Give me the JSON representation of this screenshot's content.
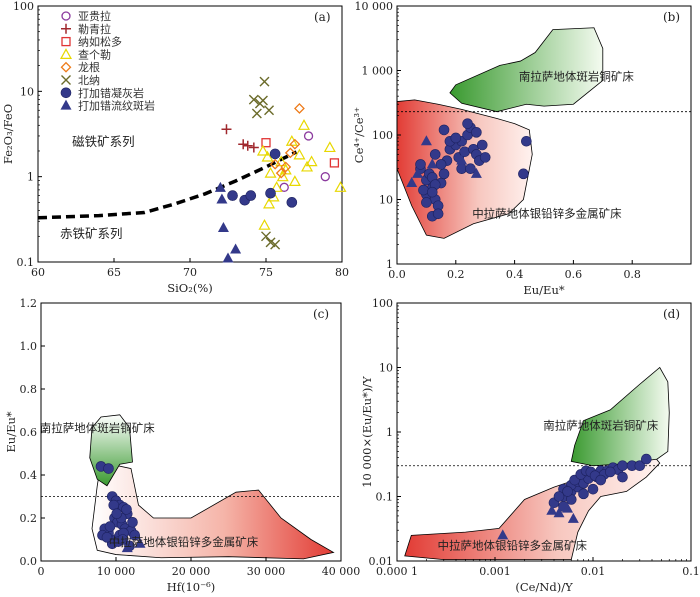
{
  "chart_data": [
    {
      "panel": "(a)",
      "type": "scatter",
      "xlabel": "SiO₂(%)",
      "ylabel": "Fe₂O₃/FeO",
      "xlim": [
        60,
        80
      ],
      "ylim": [
        0.1,
        100
      ],
      "yscale": "log",
      "xticks": [
        "60",
        "65",
        "70",
        "75",
        "80"
      ],
      "yticks": [
        {
          "v": 100,
          "label": "100"
        },
        {
          "v": 10,
          "label": "10"
        },
        {
          "v": 1,
          "label": "1"
        },
        {
          "v": 0.1,
          "label": "0.1"
        }
      ],
      "legend": {
        "position": "top-left",
        "entries": [
          {
            "label": "亚贵拉",
            "marker": "circle-open",
            "color": "#8b3a9e"
          },
          {
            "label": "勒青拉",
            "marker": "plus",
            "color": "#a0282d"
          },
          {
            "label": "纳如松多",
            "marker": "square-open",
            "color": "#e03535"
          },
          {
            "label": "查个勒",
            "marker": "triangle-open",
            "color": "#e8d800"
          },
          {
            "label": "龙根",
            "marker": "diamond-open",
            "color": "#ee7a18"
          },
          {
            "label": "北纳",
            "marker": "cross",
            "color": "#6b6b2a"
          },
          {
            "label": "打加错凝灰岩",
            "marker": "circle-filled",
            "color": "#33398a"
          },
          {
            "label": "打加错流纹斑岩",
            "marker": "triangle-filled",
            "color": "#33398a"
          }
        ]
      },
      "annotations": [
        {
          "text": "磁铁矿系列",
          "x": 64.3,
          "y": 2.3
        },
        {
          "text": "赤铁矿系列",
          "x": 63.5,
          "y": 0.19
        }
      ],
      "boundary_line": {
        "style": "dashed",
        "x": [
          60,
          64,
          67,
          69,
          71,
          73,
          75,
          77
        ],
        "y": [
          0.33,
          0.35,
          0.38,
          0.48,
          0.63,
          0.89,
          1.3,
          1.95
        ]
      },
      "series": [
        {
          "name": "亚贵拉",
          "x": [
            76.2,
            77.8,
            78.9
          ],
          "y": [
            0.75,
            3.0,
            1.0
          ]
        },
        {
          "name": "勒青拉",
          "x": [
            72.4,
            73.5,
            73.8,
            74.2
          ],
          "y": [
            3.6,
            2.4,
            2.3,
            2.2
          ]
        },
        {
          "name": "纳如松多",
          "x": [
            75.0,
            79.5
          ],
          "y": [
            2.5,
            1.45
          ]
        },
        {
          "name": "查个勒",
          "x": [
            74.8,
            75.1,
            75.3,
            75.7,
            76.0,
            76.3,
            76.7,
            77.2,
            77.5,
            78.0,
            79.2,
            79.9,
            74.9,
            75.5,
            76.9,
            75.2,
            76.1,
            77.7
          ],
          "y": [
            2.0,
            1.7,
            1.1,
            0.75,
            1.5,
            1.2,
            2.6,
            1.8,
            4.0,
            1.5,
            2.2,
            0.75,
            0.27,
            0.58,
            0.88,
            0.48,
            1.0,
            1.3
          ]
        },
        {
          "name": "龙根",
          "x": [
            75.6,
            76.0,
            76.3,
            76.6,
            76.9,
            77.2
          ],
          "y": [
            1.4,
            1.1,
            1.3,
            1.9,
            2.4,
            6.3
          ]
        },
        {
          "name": "北纳",
          "x": [
            74.2,
            74.6,
            74.9,
            75.2,
            74.4,
            74.8,
            75.0,
            75.3,
            75.6
          ],
          "y": [
            8.0,
            7.2,
            13.0,
            6.0,
            5.5,
            7.8,
            0.2,
            0.17,
            0.16
          ]
        },
        {
          "name": "打加错凝灰岩",
          "x": [
            72.8,
            73.6,
            74.0,
            75.3,
            75.6,
            76.7
          ],
          "y": [
            0.6,
            0.53,
            0.6,
            0.64,
            1.85,
            0.5
          ]
        },
        {
          "name": "打加错流纹斑岩",
          "x": [
            72.0,
            72.1,
            72.2,
            72.5,
            73.0
          ],
          "y": [
            0.74,
            0.54,
            0.25,
            0.11,
            0.14
          ]
        }
      ]
    },
    {
      "panel": "(b)",
      "type": "scatter",
      "xlabel": "Eu/Eu*",
      "ylabel": "Ce⁴⁺/Ce³⁺",
      "xlim": [
        0,
        1.0
      ],
      "ylim": [
        1,
        10000
      ],
      "yscale": "log",
      "xticks": [
        "0.0",
        "0.2",
        "0.4",
        "0.6",
        "0.8"
      ],
      "yticks": [
        {
          "v": 10000,
          "label": "10 000"
        },
        {
          "v": 1000,
          "label": "1 000"
        },
        {
          "v": 100,
          "label": "100"
        },
        {
          "v": 10,
          "label": "10"
        },
        {
          "v": 1,
          "label": "1"
        }
      ],
      "reference_line": 230,
      "regions": [
        {
          "label": "南拉萨地体斑岩铜矿床",
          "color": "green",
          "label_at": {
            "x": 0.61,
            "y": 700
          }
        },
        {
          "label": "中拉萨地体银铅锌多金属矿床",
          "color": "red",
          "label_at": {
            "x": 0.51,
            "y": 5.3
          }
        }
      ],
      "series": [
        {
          "name": "打加错凝灰岩",
          "marker": "circle-filled",
          "x": [
            0.08,
            0.1,
            0.1,
            0.12,
            0.13,
            0.14,
            0.15,
            0.16,
            0.17,
            0.18,
            0.2,
            0.21,
            0.22,
            0.23,
            0.24,
            0.25,
            0.26,
            0.27,
            0.28,
            0.29,
            0.3,
            0.08,
            0.11,
            0.13,
            0.15,
            0.18,
            0.2,
            0.22,
            0.25,
            0.12,
            0.14,
            0.09,
            0.1,
            0.12,
            0.13,
            0.44,
            0.43,
            0.12,
            0.16,
            0.24,
            0.27
          ],
          "y": [
            30,
            20,
            12,
            15,
            10,
            8,
            18,
            25,
            40,
            60,
            70,
            45,
            80,
            55,
            100,
            130,
            60,
            50,
            40,
            70,
            45,
            35,
            25,
            50,
            35,
            80,
            90,
            30,
            30,
            5.5,
            6.0,
            14,
            9,
            22,
            17,
            80,
            25,
            13,
            120,
            150,
            110
          ]
        },
        {
          "name": "打加错流纹斑岩",
          "marker": "triangle-filled",
          "x": [
            0.05,
            0.07,
            0.1,
            0.12,
            0.22,
            0.27
          ],
          "y": [
            18,
            25,
            80,
            35,
            40,
            25
          ]
        }
      ]
    },
    {
      "panel": "(c)",
      "type": "scatter",
      "xlabel": "Hf(10⁻⁶)",
      "ylabel": "Eu/Eu*",
      "xlim": [
        0,
        40000
      ],
      "ylim": [
        0,
        1.2
      ],
      "xticks": [
        "0",
        "10 000",
        "20 000",
        "30 000",
        "40 000"
      ],
      "yticks": [
        "0.0",
        "0.2",
        "0.4",
        "0.6",
        "0.8",
        "1.0",
        "1.2"
      ],
      "reference_line": 0.3,
      "regions": [
        {
          "label": "南拉萨地体斑岩铜矿床",
          "color": "green",
          "label_at": {
            "x": 7500,
            "y": 0.6
          }
        },
        {
          "label": "中拉萨地体银铅锌多金属矿床",
          "color": "red",
          "label_at": {
            "x": 19000,
            "y": 0.07
          }
        }
      ],
      "series": [
        {
          "name": "打加错凝灰岩",
          "marker": "circle-filled",
          "x": [
            8000,
            9000,
            9500,
            10000,
            10500,
            11000,
            11500,
            9800,
            10200,
            10800,
            11200,
            12000,
            9000,
            8500,
            10000,
            10500,
            11000,
            12500,
            9500,
            10300,
            11800,
            8200,
            9200,
            10700,
            11400,
            12200,
            9700,
            10100,
            10900,
            8800
          ],
          "y": [
            0.44,
            0.43,
            0.3,
            0.28,
            0.26,
            0.25,
            0.22,
            0.2,
            0.18,
            0.17,
            0.15,
            0.14,
            0.13,
            0.15,
            0.1,
            0.12,
            0.13,
            0.12,
            0.08,
            0.09,
            0.07,
            0.12,
            0.16,
            0.2,
            0.24,
            0.18,
            0.26,
            0.22,
            0.1,
            0.11
          ]
        },
        {
          "name": "打加错流纹斑岩",
          "marker": "triangle-filled",
          "x": [
            12500,
            13200,
            11500
          ],
          "y": [
            0.12,
            0.08,
            0.06
          ]
        }
      ]
    },
    {
      "panel": "(d)",
      "type": "scatter",
      "xlabel": "(Ce/Nd)/Y",
      "ylabel": "10 000×(Eu/Eu*)/Y",
      "xlim": [
        0.0001,
        0.1
      ],
      "ylim": [
        0.01,
        100
      ],
      "xscale": "log",
      "yscale": "log",
      "xticks": [
        {
          "v": 0.0001,
          "label": "0.000 1"
        },
        {
          "v": 0.001,
          "label": "0.001"
        },
        {
          "v": 0.01,
          "label": "0.01"
        },
        {
          "v": 0.1,
          "label": "0.1"
        }
      ],
      "yticks": [
        {
          "v": 100,
          "label": "100"
        },
        {
          "v": 10,
          "label": "10"
        },
        {
          "v": 1,
          "label": "1"
        },
        {
          "v": 0.1,
          "label": "0.1"
        },
        {
          "v": 0.01,
          "label": "0.01"
        }
      ],
      "reference_line": 0.3,
      "regions": [
        {
          "label": "南拉萨地体斑岩铜矿床",
          "color": "green",
          "label_at": {
            "x": 0.012,
            "y": 1.1
          }
        },
        {
          "label": "中拉萨地体银铅锌多金属矿床",
          "color": "red",
          "label_at": {
            "x": 0.0015,
            "y": 0.015
          }
        }
      ],
      "series": [
        {
          "name": "打加错凝灰岩",
          "marker": "circle-filled",
          "x": [
            0.004,
            0.005,
            0.006,
            0.007,
            0.008,
            0.009,
            0.01,
            0.012,
            0.014,
            0.016,
            0.018,
            0.02,
            0.025,
            0.03,
            0.035,
            0.006,
            0.007,
            0.008,
            0.009,
            0.011,
            0.013,
            0.015,
            0.005,
            0.0065,
            0.0075,
            0.0085,
            0.0095,
            0.0105,
            0.012,
            0.02,
            0.005,
            0.006,
            0.008,
            0.01,
            0.0045,
            0.0055
          ],
          "y": [
            0.08,
            0.1,
            0.12,
            0.14,
            0.18,
            0.2,
            0.22,
            0.25,
            0.25,
            0.28,
            0.26,
            0.3,
            0.3,
            0.3,
            0.38,
            0.15,
            0.17,
            0.16,
            0.19,
            0.2,
            0.22,
            0.24,
            0.13,
            0.18,
            0.22,
            0.25,
            0.24,
            0.21,
            0.18,
            0.2,
            0.07,
            0.09,
            0.11,
            0.13,
            0.1,
            0.12
          ]
        },
        {
          "name": "打加错流纹斑岩",
          "marker": "triangle-filled",
          "x": [
            0.0012,
            0.0045,
            0.0055,
            0.0063,
            0.0038
          ],
          "y": [
            0.025,
            0.055,
            0.065,
            0.045,
            0.06
          ]
        }
      ]
    }
  ]
}
